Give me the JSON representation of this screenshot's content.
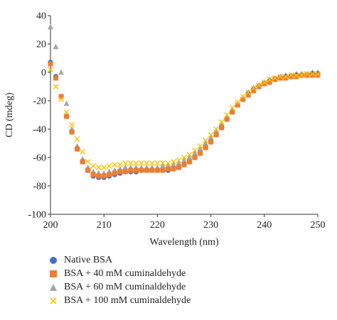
{
  "chart_data": {
    "type": "scatter",
    "xlabel": "Wavelength (nm)",
    "ylabel": "CD (mdeg)",
    "xlim": [
      200,
      250
    ],
    "ylim": [
      -100,
      40
    ],
    "xticks": [
      "200",
      "210",
      "220",
      "230",
      "240",
      "250"
    ],
    "yticks": [
      "40",
      "20",
      "0",
      "-20",
      "-40",
      "-60",
      "-80",
      "-100"
    ],
    "grid": false,
    "legend_position": "bottom",
    "x": [
      200,
      201,
      202,
      203,
      204,
      205,
      206,
      207,
      208,
      209,
      210,
      211,
      212,
      213,
      214,
      215,
      216,
      217,
      218,
      219,
      220,
      221,
      222,
      223,
      224,
      225,
      226,
      227,
      228,
      229,
      230,
      231,
      232,
      233,
      234,
      235,
      236,
      237,
      238,
      239,
      240,
      241,
      242,
      243,
      244,
      245,
      246,
      247,
      248,
      249,
      250
    ],
    "series": [
      {
        "name": "Native BSA",
        "color": "#4472C4",
        "marker": "circle",
        "values": [
          7,
          -3,
          -17,
          -31,
          -42,
          -54,
          -63,
          -69,
          -73,
          -74,
          -74,
          -73,
          -72,
          -71,
          -70,
          -70,
          -70,
          -69,
          -69,
          -69,
          -69,
          -69,
          -69,
          -68,
          -67,
          -65,
          -63,
          -60,
          -57,
          -53,
          -49,
          -44,
          -39,
          -33,
          -28,
          -23,
          -19,
          -15,
          -12,
          -10,
          -8,
          -6,
          -5,
          -4,
          -3,
          -3,
          -2,
          -2,
          -2,
          -1,
          -1
        ]
      },
      {
        "name": "BSA + 40 mM cuminaldehyde",
        "color": "#ED7D31",
        "marker": "square",
        "values": [
          6,
          -4,
          -17,
          -31,
          -42,
          -54,
          -63,
          -69,
          -72,
          -73,
          -73,
          -72,
          -71,
          -70,
          -70,
          -69,
          -69,
          -69,
          -69,
          -69,
          -69,
          -69,
          -68,
          -68,
          -67,
          -65,
          -63,
          -60,
          -57,
          -53,
          -49,
          -44,
          -39,
          -33,
          -28,
          -23,
          -19,
          -16,
          -13,
          -10,
          -8,
          -7,
          -5,
          -4,
          -4,
          -3,
          -3,
          -2,
          -2,
          -2,
          -2
        ]
      },
      {
        "name": "BSA + 60 mM cuminaldehyde",
        "color": "#A5A5A5",
        "marker": "triangle",
        "values": [
          32,
          18,
          0,
          -22,
          -40,
          -52,
          -61,
          -67,
          -70,
          -71,
          -71,
          -70,
          -69,
          -68,
          -67,
          -67,
          -67,
          -67,
          -67,
          -67,
          -67,
          -66,
          -66,
          -65,
          -64,
          -62,
          -60,
          -57,
          -54,
          -50,
          -46,
          -41,
          -36,
          -31,
          -26,
          -22,
          -18,
          -14,
          -11,
          -9,
          -7,
          -5,
          -4,
          -3,
          -2,
          -2,
          -1,
          -1,
          -1,
          0,
          0
        ]
      },
      {
        "name": "BSA + 100 mM cuminaldehyde",
        "color": "#FFC000",
        "marker": "x",
        "values": [
          2,
          -10,
          -19,
          -28,
          -37,
          -47,
          -56,
          -63,
          -66,
          -67,
          -67,
          -66,
          -65,
          -65,
          -64,
          -64,
          -64,
          -64,
          -64,
          -64,
          -64,
          -64,
          -64,
          -63,
          -62,
          -60,
          -58,
          -55,
          -52,
          -48,
          -44,
          -40,
          -35,
          -30,
          -25,
          -21,
          -17,
          -14,
          -11,
          -9,
          -7,
          -5,
          -4,
          -3,
          -3,
          -2,
          -2,
          -2,
          -1,
          -1,
          -1
        ]
      }
    ]
  }
}
